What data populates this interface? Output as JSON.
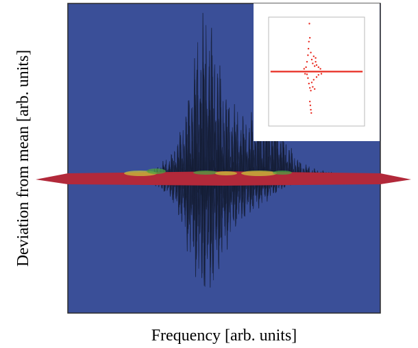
{
  "chart_data": {
    "type": "line",
    "title": "",
    "xlabel": "Frequency [arb. units]",
    "ylabel": "Deviation from mean [arb. units]",
    "xlim": [
      0,
      1
    ],
    "ylim": [
      -1,
      1
    ],
    "grid": false,
    "legend": "none",
    "colors": {
      "background": "#3a4f98",
      "trace": "#141c33",
      "ridge_red": "#b2293a",
      "ridge_yellow": "#c8c23a",
      "ridge_green": "#4fa043",
      "inset_points": "#e8281e"
    },
    "main_envelope": {
      "x": [
        0.0,
        0.1,
        0.2,
        0.28,
        0.33,
        0.36,
        0.38,
        0.4,
        0.42,
        0.44,
        0.46,
        0.48,
        0.5,
        0.52,
        0.54,
        0.56,
        0.58,
        0.6,
        0.62,
        0.64,
        0.66,
        0.68,
        0.7,
        0.72,
        0.75,
        0.8,
        0.9,
        1.0
      ],
      "upper": [
        0.0,
        0.0,
        0.02,
        0.06,
        0.14,
        0.28,
        0.45,
        0.65,
        0.92,
        1.0,
        0.92,
        0.74,
        0.56,
        0.46,
        0.42,
        0.38,
        0.36,
        0.44,
        0.48,
        0.45,
        0.4,
        0.32,
        0.24,
        0.16,
        0.09,
        0.05,
        0.02,
        0.0
      ],
      "lower": [
        0.0,
        0.0,
        -0.02,
        -0.06,
        -0.16,
        -0.35,
        -0.55,
        -0.72,
        -0.88,
        -0.96,
        -0.9,
        -0.78,
        -0.62,
        -0.48,
        -0.4,
        -0.34,
        -0.3,
        -0.26,
        -0.22,
        -0.18,
        -0.14,
        -0.1,
        -0.07,
        -0.05,
        -0.03,
        -0.02,
        -0.01,
        0.0
      ]
    },
    "inset": {
      "type": "scatter",
      "xlim": [
        0,
        1
      ],
      "ylim": [
        -1,
        1
      ],
      "outliers": [
        [
          0.37,
          0.05
        ],
        [
          0.39,
          0.08
        ],
        [
          0.4,
          0.18
        ],
        [
          0.41,
          0.3
        ],
        [
          0.415,
          0.42
        ],
        [
          0.42,
          0.55
        ],
        [
          0.425,
          0.88
        ],
        [
          0.43,
          0.62
        ],
        [
          0.44,
          0.35
        ],
        [
          0.45,
          0.22
        ],
        [
          0.46,
          0.15
        ],
        [
          0.47,
          0.28
        ],
        [
          0.48,
          0.1
        ],
        [
          0.49,
          0.18
        ],
        [
          0.5,
          0.12
        ],
        [
          0.52,
          0.08
        ],
        [
          0.54,
          0.05
        ],
        [
          0.41,
          -0.12
        ],
        [
          0.42,
          -0.22
        ],
        [
          0.43,
          -0.3
        ],
        [
          0.44,
          -0.35
        ],
        [
          0.45,
          -0.2
        ],
        [
          0.46,
          -0.28
        ],
        [
          0.47,
          -0.15
        ],
        [
          0.48,
          -0.32
        ],
        [
          0.5,
          -0.1
        ],
        [
          0.43,
          -0.55
        ],
        [
          0.44,
          -0.7
        ],
        [
          0.445,
          -0.76
        ],
        [
          0.435,
          -0.62
        ],
        [
          0.52,
          -0.06
        ],
        [
          0.55,
          -0.04
        ],
        [
          0.4,
          -0.05
        ],
        [
          0.38,
          -0.04
        ],
        [
          0.49,
          0.25
        ]
      ]
    }
  }
}
